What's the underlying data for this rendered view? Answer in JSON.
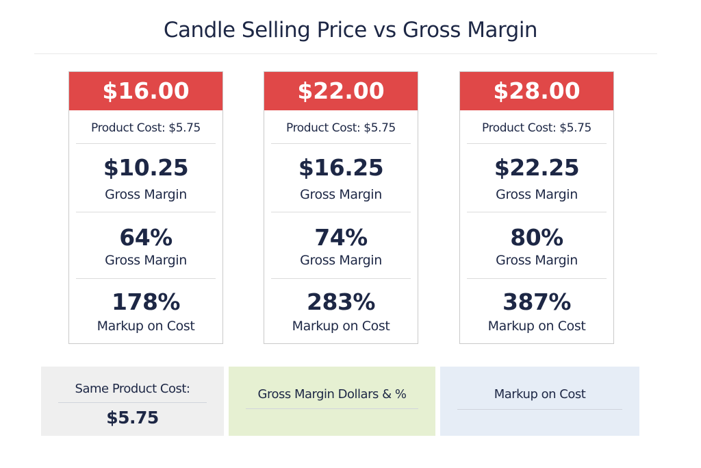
{
  "title": "Candle Selling Price vs Gross Margin",
  "colors": {
    "header_red": "#e04848",
    "text_navy": "#1d2745",
    "panel_gray": "#efefef",
    "panel_green": "#e6f0d2",
    "panel_blue": "#e6edf6"
  },
  "cards": [
    {
      "price": "$16.00",
      "cost": "Product Cost: $5.75",
      "margin_dollars": "$10.25",
      "margin_dollars_label": "Gross Margin",
      "margin_pct": "64%",
      "margin_pct_label": "Gross Margin",
      "markup": "178%",
      "markup_label": "Markup on Cost"
    },
    {
      "price": "$22.00",
      "cost": "Product Cost: $5.75",
      "margin_dollars": "$16.25",
      "margin_dollars_label": "Gross Margin",
      "margin_pct": "74%",
      "margin_pct_label": "Gross Margin",
      "markup": "283%",
      "markup_label": "Markup on Cost"
    },
    {
      "price": "$28.00",
      "cost": "Product Cost: $5.75",
      "margin_dollars": "$22.25",
      "margin_dollars_label": "Gross Margin",
      "margin_pct": "80%",
      "margin_pct_label": "Gross Margin",
      "markup": "387%",
      "markup_label": "Markup on Cost"
    }
  ],
  "panels": {
    "cost": {
      "label": "Same Product Cost:",
      "value": "$5.75"
    },
    "margin": {
      "label": "Gross Margin Dollars & %"
    },
    "markup": {
      "label": "Markup on Cost"
    }
  }
}
